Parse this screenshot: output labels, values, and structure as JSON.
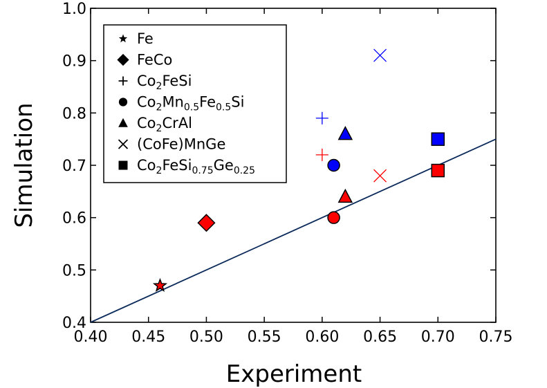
{
  "chart_data": {
    "type": "scatter",
    "xlabel": "Experiment",
    "ylabel": "Simulation",
    "xlim": [
      0.4,
      0.75
    ],
    "ylim": [
      0.4,
      1.0
    ],
    "x_ticks": [
      "0.40",
      "0.45",
      "0.50",
      "0.55",
      "0.60",
      "0.65",
      "0.70",
      "0.75"
    ],
    "y_ticks": [
      "0.4",
      "0.5",
      "0.6",
      "0.7",
      "0.8",
      "0.9",
      "1.0"
    ],
    "grid": false,
    "legend_placement": "top-left",
    "reference_line": {
      "x": [
        0.4,
        0.75
      ],
      "y": [
        0.4,
        0.75
      ],
      "color": "#0b2a5a"
    },
    "colors": {
      "red": "#ff0000",
      "blue": "#0000ff",
      "outline": "#000000"
    },
    "legend": [
      {
        "marker": "star",
        "parts": [
          [
            "Fe",
            ""
          ]
        ]
      },
      {
        "marker": "diamond",
        "parts": [
          [
            "FeCo",
            ""
          ]
        ]
      },
      {
        "marker": "plus",
        "parts": [
          [
            "Co",
            ""
          ],
          [
            "2",
            "sub"
          ],
          [
            "FeSi",
            ""
          ]
        ]
      },
      {
        "marker": "circle",
        "parts": [
          [
            "Co",
            ""
          ],
          [
            "2",
            "sub"
          ],
          [
            "Mn",
            ""
          ],
          [
            "0.5",
            "sub"
          ],
          [
            "Fe",
            ""
          ],
          [
            "0.5",
            "sub"
          ],
          [
            "Si",
            ""
          ]
        ]
      },
      {
        "marker": "triangle",
        "parts": [
          [
            "Co",
            ""
          ],
          [
            "2",
            "sub"
          ],
          [
            "CrAl",
            ""
          ]
        ]
      },
      {
        "marker": "x",
        "parts": [
          [
            "(CoFe)MnGe",
            ""
          ]
        ]
      },
      {
        "marker": "square",
        "parts": [
          [
            "Co",
            ""
          ],
          [
            "2",
            "sub"
          ],
          [
            "FeSi",
            ""
          ],
          [
            "0.75",
            "sub"
          ],
          [
            "Ge",
            ""
          ],
          [
            "0.25",
            "sub"
          ]
        ]
      }
    ],
    "points": [
      {
        "name": "Fe",
        "marker": "star",
        "color": "red",
        "x": 0.46,
        "y": 0.47
      },
      {
        "name": "FeCo",
        "marker": "diamond",
        "color": "red",
        "x": 0.5,
        "y": 0.59
      },
      {
        "name": "Co2FeSi",
        "marker": "plus",
        "color": "red",
        "x": 0.6,
        "y": 0.72
      },
      {
        "name": "Co2FeSi",
        "marker": "plus",
        "color": "blue",
        "x": 0.6,
        "y": 0.79
      },
      {
        "name": "Co2Mn0.5Fe0.5Si",
        "marker": "circle",
        "color": "red",
        "x": 0.61,
        "y": 0.6
      },
      {
        "name": "Co2Mn0.5Fe0.5Si",
        "marker": "circle",
        "color": "blue",
        "x": 0.61,
        "y": 0.7
      },
      {
        "name": "Co2CrAl",
        "marker": "triangle",
        "color": "red",
        "x": 0.62,
        "y": 0.64
      },
      {
        "name": "Co2CrAl",
        "marker": "triangle",
        "color": "blue",
        "x": 0.62,
        "y": 0.76
      },
      {
        "name": "(CoFe)MnGe",
        "marker": "x",
        "color": "red",
        "x": 0.65,
        "y": 0.68
      },
      {
        "name": "(CoFe)MnGe",
        "marker": "x",
        "color": "blue",
        "x": 0.65,
        "y": 0.91
      },
      {
        "name": "Co2FeSi0.75Ge0.25",
        "marker": "square",
        "color": "red",
        "x": 0.7,
        "y": 0.69
      },
      {
        "name": "Co2FeSi0.75Ge0.25",
        "marker": "square",
        "color": "blue",
        "x": 0.7,
        "y": 0.75
      }
    ]
  }
}
